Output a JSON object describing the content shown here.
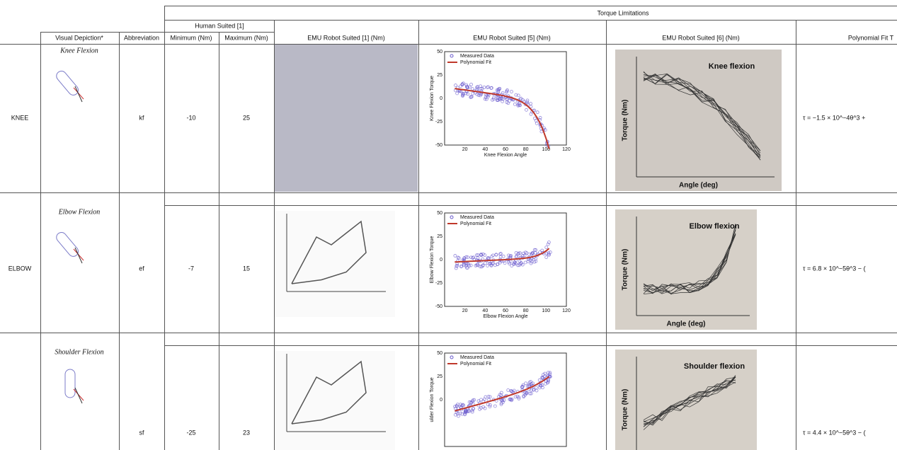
{
  "header": {
    "group": "Torque Limitations",
    "human": "Human Suited [1]",
    "columns": [
      "Visual Depiction*",
      "Abbreviation",
      "Minimum (Nm)",
      "Maximum (Nm)",
      "EMU Robot Suited [1] (Nm)",
      "EMU Robot Suited [5] (Nm)",
      "EMU Robot Suited [6] (Nm)",
      "Polynomial Fit T"
    ]
  },
  "rows": [
    {
      "joint": "KNEE",
      "depiction": "Knee Flexion",
      "abbreviation": "kf",
      "minimum": -10,
      "maximum": 25,
      "fit": "τ = −1.5 × 10^−4θ^3 +",
      "plot5": {
        "legend": [
          "Measured Data",
          "Polynomial Fit"
        ],
        "ylabel": "Knee Flexion Torque",
        "xlabel": "Knee Flexion Angle",
        "yticks": [
          50,
          25,
          0,
          -25,
          -50
        ],
        "xticks": [
          20,
          40,
          60,
          80,
          100,
          120
        ]
      },
      "plot6": {
        "title": "Knee flexion",
        "ylabel": "Torque (Nm)",
        "xlabel": "Angle (deg)"
      }
    },
    {
      "joint": "ELBOW",
      "depiction": "Elbow Flexion",
      "abbreviation": "ef",
      "minimum": -7,
      "maximum": 15,
      "fit": "τ = 6.8 × 10^−5θ^3 − (",
      "plot5": {
        "legend": [
          "Measured Data",
          "Polynomial Fit"
        ],
        "ylabel": "Elbow Flexion Torque",
        "xlabel": "Elbow Flexion Angle",
        "yticks": [
          50,
          25,
          0,
          -25,
          -50
        ],
        "xticks": [
          20,
          40,
          60,
          80,
          100,
          120
        ]
      },
      "plot6": {
        "title": "Elbow flexion",
        "ylabel": "Torque (Nm)",
        "xlabel": "Angle (deg)"
      }
    },
    {
      "depiction": "Shoulder Flexion",
      "abbreviation": "sf",
      "minimum": -25,
      "maximum": 23,
      "fit": "τ = 4.4 × 10^−5θ^3 − (",
      "plot5": {
        "legend": [
          "Measured Data",
          "Polynomial Fit"
        ],
        "ylabel": "ulder Flexion Torque",
        "yticks": [
          50,
          25,
          0
        ]
      },
      "plot6": {
        "title": "Shoulder flexion",
        "ylabel": "Torque (Nm)"
      }
    }
  ]
}
